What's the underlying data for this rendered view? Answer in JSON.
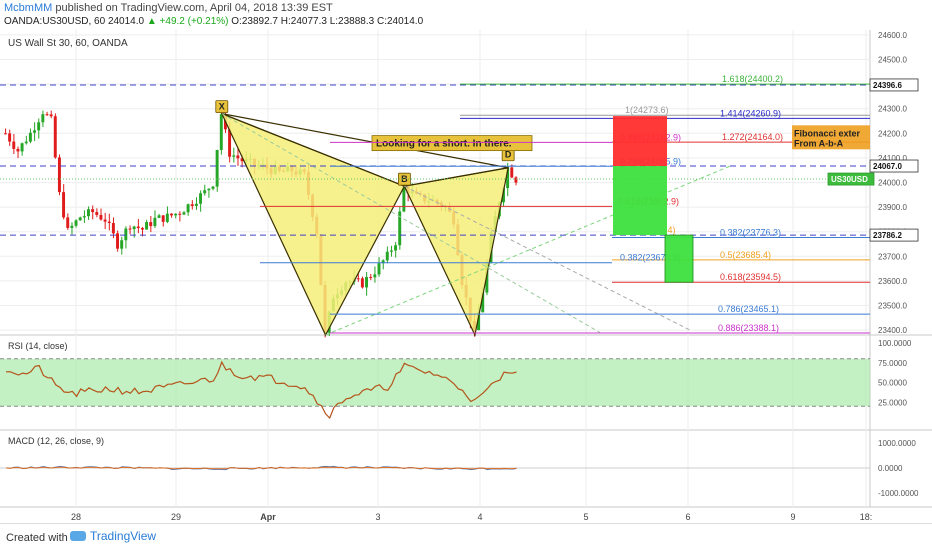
{
  "header": {
    "user": "McbmMM",
    "published": "published on TradingView.com, April 04, 2018 13:39 EST",
    "symbol_line": "OANDA:US30USD, 60",
    "last": "24014.0",
    "change": "▲ +49.2 (+0.21%)",
    "o": "O:23892.7",
    "h": "H:24077.3",
    "l": "L:23888.3",
    "c": "C:24014.0"
  },
  "legend": {
    "main": "US Wall St 30, 60, OANDA",
    "rsi": "RSI (14, close)",
    "macd": "MACD (12, 26, close, 9)"
  },
  "footer": {
    "created": "Created with",
    "brand": "TradingView"
  },
  "colors": {
    "up": "#26a626",
    "down": "#e01b1b",
    "pattern_fill": "#f5ef78",
    "rsi_band": "#9be89b",
    "red_box": "#ff2d2d",
    "green_box": "#3de03d"
  },
  "chart_data": {
    "type": "candlestick",
    "title": "US Wall St 30, 60, OANDA",
    "x_ticks": [
      "28",
      "29",
      "Apr",
      "3",
      "4",
      "5",
      "6",
      "9",
      "18:"
    ],
    "y_ticks": [
      "24600.0",
      "24500.0",
      "24400.0",
      "24300.0",
      "24200.0",
      "24100.0",
      "24000.0",
      "23900.0",
      "23800.0",
      "23700.0",
      "23600.0",
      "23500.0",
      "23400.0"
    ],
    "ylim": [
      23380,
      24620
    ],
    "price_tags": [
      {
        "value": 24396.6,
        "label": "24396.6",
        "style": "white"
      },
      {
        "value": 24067.0,
        "label": "24067.0",
        "style": "white"
      },
      {
        "value": 24014.0,
        "label": "US30USD",
        "style": "green"
      },
      {
        "value": 24000.0,
        "label": "24000.0",
        "style": "white"
      },
      {
        "value": 23786.2,
        "label": "23786.2",
        "style": "white"
      }
    ],
    "harmonic_points": [
      {
        "label": "X",
        "x": 52,
        "y": 24280
      },
      {
        "label": "B",
        "x": 96,
        "y": 23985
      },
      {
        "label": "D",
        "x": 121,
        "y": 24060
      }
    ],
    "harmonic_lows": [
      {
        "x": 77,
        "y": 23380
      },
      {
        "x": 113,
        "y": 23380
      }
    ],
    "annotation": "Looking for a short. In there.",
    "fib_levels": [
      {
        "label": "1.618(24400.2)",
        "value": 24400.2,
        "color": "#3cb33c"
      },
      {
        "label": "1(24273.6)",
        "value": 24273.6,
        "color": "#999999"
      },
      {
        "label": "1.414(24260.9)",
        "value": 24260.9,
        "color": "#2b2bcc"
      },
      {
        "label": "0.886(24162.9)",
        "value": 24162.9,
        "color": "#cc33cc"
      },
      {
        "label": "1.272(24164.0)",
        "value": 24164.0,
        "color": "#e03030"
      },
      {
        "label": "0.786(24065.9)",
        "value": 24065.9,
        "color": "#3a7bd5"
      },
      {
        "label": "0.618(23902.9)",
        "value": 23902.9,
        "color": "#e03030"
      },
      {
        "label": "0.382(23776.3)",
        "value": 23776.3,
        "color": "#3a7bd5"
      },
      {
        "label": "0.5(23685.4)",
        "value": 23685.4,
        "color": "#f0a020"
      },
      {
        "label": "0.382(23673.8)",
        "value": 23673.8,
        "color": "#3a7bd5"
      },
      {
        "label": "0.618(23594.5)",
        "value": 23594.5,
        "color": "#e03030"
      },
      {
        "label": "0.786(23465.1)",
        "value": 23465.1,
        "color": "#3a7bd5"
      },
      {
        "label": "0.886(23388.1)",
        "value": 23388.1,
        "color": "#cc33cc"
      }
    ],
    "fib_ext_label": [
      "Fibonacci exter",
      "From A-b-A"
    ],
    "partial_label": ".4)",
    "position": {
      "entry": 24067.0,
      "stop": 24270.0,
      "target": 23786.2,
      "target_ext": 23594.5
    },
    "rsi_ticks": [
      "100.0000",
      "75.0000",
      "50.0000",
      "25.0000"
    ],
    "macd_ticks": [
      "1000.0000",
      "0.0000",
      "-1000.0000"
    ]
  }
}
